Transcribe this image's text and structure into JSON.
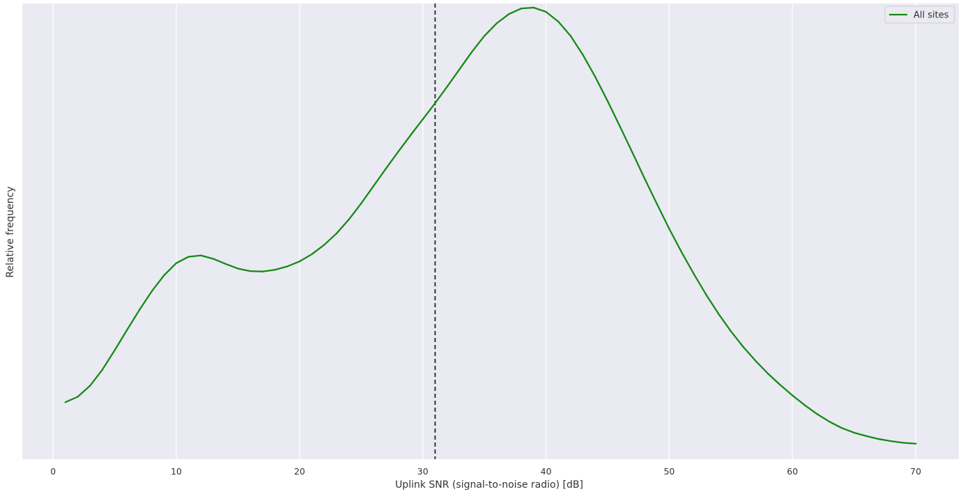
{
  "chart_data": {
    "type": "line",
    "title": "",
    "xlabel": "Uplink SNR (signal-to-noise radio) [dB]",
    "ylabel": "Relative frequency",
    "xlim": [
      -2.5,
      73.5
    ],
    "ylim": [
      0.0,
      1.0
    ],
    "xticks": [
      0,
      10,
      20,
      30,
      40,
      50,
      60,
      70
    ],
    "yticks_shown": false,
    "grid": "vertical",
    "background_color": "#eaeaf2",
    "grid_color": "#ffffff",
    "legend_position": "top-right",
    "vline": {
      "x": 31,
      "style": "dashed",
      "color": "#222222"
    },
    "series": [
      {
        "name": "All sites",
        "color": "#158a15",
        "x": [
          1,
          2,
          3,
          4,
          5,
          6,
          7,
          8,
          9,
          10,
          11,
          12,
          13,
          14,
          15,
          16,
          17,
          18,
          19,
          20,
          21,
          22,
          23,
          24,
          25,
          26,
          27,
          28,
          29,
          30,
          31,
          32,
          33,
          34,
          35,
          36,
          37,
          38,
          39,
          40,
          41,
          42,
          43,
          44,
          45,
          46,
          47,
          48,
          49,
          50,
          51,
          52,
          53,
          54,
          55,
          56,
          57,
          58,
          59,
          60,
          61,
          62,
          63,
          64,
          65,
          66,
          67,
          68,
          69,
          70
        ],
        "y": [
          0.105,
          0.118,
          0.144,
          0.182,
          0.228,
          0.276,
          0.323,
          0.367,
          0.405,
          0.434,
          0.449,
          0.452,
          0.444,
          0.432,
          0.421,
          0.415,
          0.414,
          0.418,
          0.426,
          0.438,
          0.455,
          0.477,
          0.504,
          0.537,
          0.575,
          0.616,
          0.657,
          0.697,
          0.736,
          0.774,
          0.812,
          0.852,
          0.893,
          0.934,
          0.971,
          1.001,
          1.023,
          1.036,
          1.038,
          1.028,
          1.005,
          0.971,
          0.926,
          0.874,
          0.817,
          0.757,
          0.696,
          0.634,
          0.574,
          0.515,
          0.46,
          0.408,
          0.359,
          0.314,
          0.273,
          0.236,
          0.203,
          0.173,
          0.146,
          0.121,
          0.098,
          0.077,
          0.059,
          0.044,
          0.033,
          0.025,
          0.018,
          0.013,
          0.009,
          0.007
        ]
      }
    ]
  }
}
